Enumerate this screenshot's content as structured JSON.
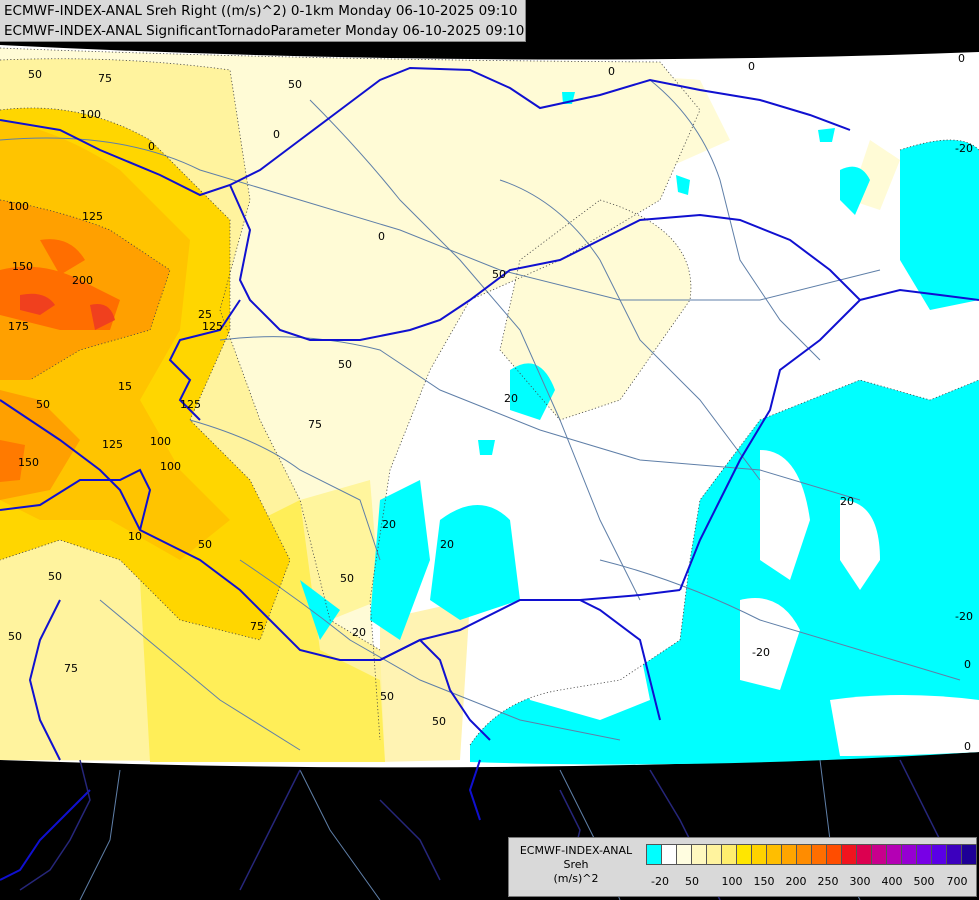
{
  "titles": {
    "line1": "ECMWF-INDEX-ANAL Sreh Right ((m/s)^2) 0-1km Monday 06-10-2025 09:10",
    "line2": "ECMWF-INDEX-ANAL SignificantTornadoParameter Monday 06-10-2025 09:10"
  },
  "legend": {
    "name_line1": "ECMWF-INDEX-ANAL",
    "name_line2": "Sreh",
    "name_line3": "(m/s)^2",
    "colors": [
      "#00ffff",
      "#ffffff",
      "#fffde0",
      "#fff8bf",
      "#fff39e",
      "#ffee6e",
      "#ffe600",
      "#ffd200",
      "#ffbe00",
      "#ffa500",
      "#ff8c00",
      "#ff6e00",
      "#ff4d00",
      "#f0141e",
      "#dc0050",
      "#c8008c",
      "#b400b4",
      "#9600d2",
      "#7800e6",
      "#5a00e6",
      "#3c00be",
      "#1e0096"
    ],
    "ticks": [
      "-20",
      "50",
      "100",
      "150",
      "200",
      "250",
      "300",
      "400",
      "500",
      "700"
    ]
  },
  "contour_labels": {
    "l50a": "50",
    "l75a": "75",
    "l100a": "100",
    "l50b": "50",
    "l0a": "0",
    "l0b": "0",
    "l0c": "0",
    "l0d": "0",
    "l0e": "0",
    "l100b": "100",
    "l125a": "125",
    "l150a": "150",
    "l200": "200",
    "l175": "175",
    "l125b": "125",
    "l0f": "0",
    "l50c": "50",
    "l50d": "50",
    "l75b": "75",
    "l25": "25",
    "l125c": "125",
    "l15": "15",
    "l50e": "50",
    "l100c": "100",
    "l125d": "125",
    "l150b": "150",
    "l50f": "50",
    "l100d": "100",
    "l50g": "50",
    "l75c": "75",
    "l50h": "50",
    "l20a": "20",
    "l20b": "20",
    "l20c": "20",
    "l20d": "20",
    "l20e": "-20",
    "l20f": "20",
    "l20g": "-20",
    "l20h": "-20",
    "l0g": "0",
    "l0h": "0",
    "l50i": "50",
    "l50j": "50",
    "l20i": "-20",
    "l10": "10"
  }
}
